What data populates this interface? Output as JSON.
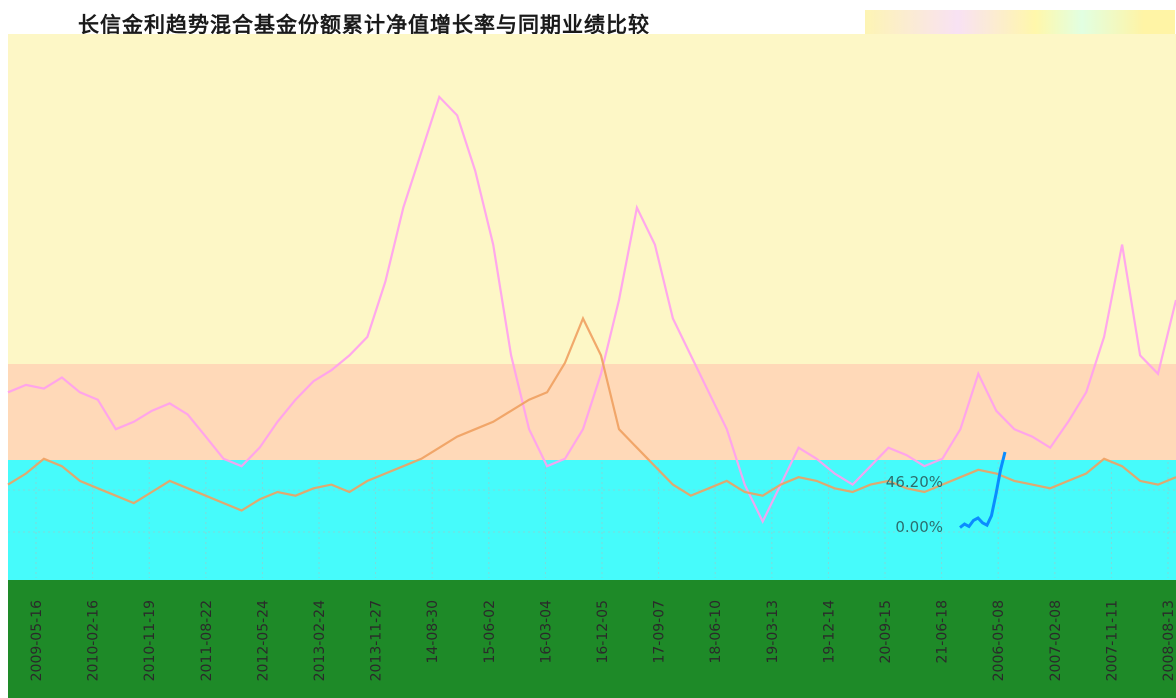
{
  "title": "长信金利趋势混合基金份额累计净值增长率与同期业绩比较",
  "colors": {
    "band_top": "#fdf7c6",
    "band_pink": "#ffd9b8",
    "band_cyan": "#46fbfb",
    "band_green": "#1e8a28",
    "fund_line": "#ff9ef0",
    "bench_line": "#f0a060",
    "blue_line": "#0a8cff",
    "olive_line": "#7d9a2a"
  },
  "chart_data": {
    "type": "line",
    "title": "长信金利趋势混合基金份额累计净值增长率与同期业绩比较",
    "xlabel": "",
    "ylabel": "",
    "y_tick_labels": [
      "0.00%",
      "46.20%"
    ],
    "x_tick_labels": [
      "2009-05-16",
      "2010-02-16",
      "2010-11-19",
      "2011-08-22",
      "2012-05-24",
      "2013-02-24",
      "2013-11-27",
      "14-08-30",
      "15-06-02",
      "16-03-04",
      "16-12-05",
      "17-09-07",
      "18-06-10",
      "19-03-13",
      "19-12-14",
      "20-09-15",
      "21-06-18",
      "2006-05-08",
      "2007-02-08",
      "2007-11-11",
      "2008-08-13"
    ],
    "series": [
      {
        "values": [
          0.3,
          0.32,
          0.31,
          0.34,
          0.3,
          0.28,
          0.2,
          0.22,
          0.25,
          0.27,
          0.24,
          0.18,
          0.12,
          0.1,
          0.15,
          0.22,
          0.28,
          0.33,
          0.36,
          0.4,
          0.45,
          0.6,
          0.8,
          0.95,
          1.1,
          1.05,
          0.9,
          0.7,
          0.4,
          0.2,
          0.1,
          0.12,
          0.2,
          0.35,
          0.55,
          0.8,
          0.7,
          0.5,
          0.4,
          0.3,
          0.2,
          0.05,
          -0.05,
          0.05,
          0.15,
          0.12,
          0.08,
          0.05,
          0.1,
          0.15,
          0.13,
          0.1,
          0.12,
          0.2,
          0.35,
          0.25,
          0.2,
          0.18,
          0.15,
          0.22,
          0.3,
          0.45,
          0.7,
          0.4,
          0.35,
          0.55
        ]
      },
      {
        "values": [
          0.05,
          0.08,
          0.12,
          0.1,
          0.06,
          0.04,
          0.02,
          0.0,
          0.03,
          0.06,
          0.04,
          0.02,
          0.0,
          -0.02,
          0.01,
          0.03,
          0.02,
          0.04,
          0.05,
          0.03,
          0.06,
          0.08,
          0.1,
          0.12,
          0.15,
          0.18,
          0.2,
          0.22,
          0.25,
          0.28,
          0.3,
          0.38,
          0.5,
          0.4,
          0.2,
          0.15,
          0.1,
          0.05,
          0.02,
          0.04,
          0.06,
          0.03,
          0.02,
          0.05,
          0.07,
          0.06,
          0.04,
          0.03,
          0.05,
          0.06,
          0.04,
          0.03,
          0.05,
          0.07,
          0.09,
          0.08,
          0.06,
          0.05,
          0.04,
          0.06,
          0.08,
          0.12,
          0.1,
          0.06,
          0.05,
          0.07
        ]
      }
    ]
  }
}
